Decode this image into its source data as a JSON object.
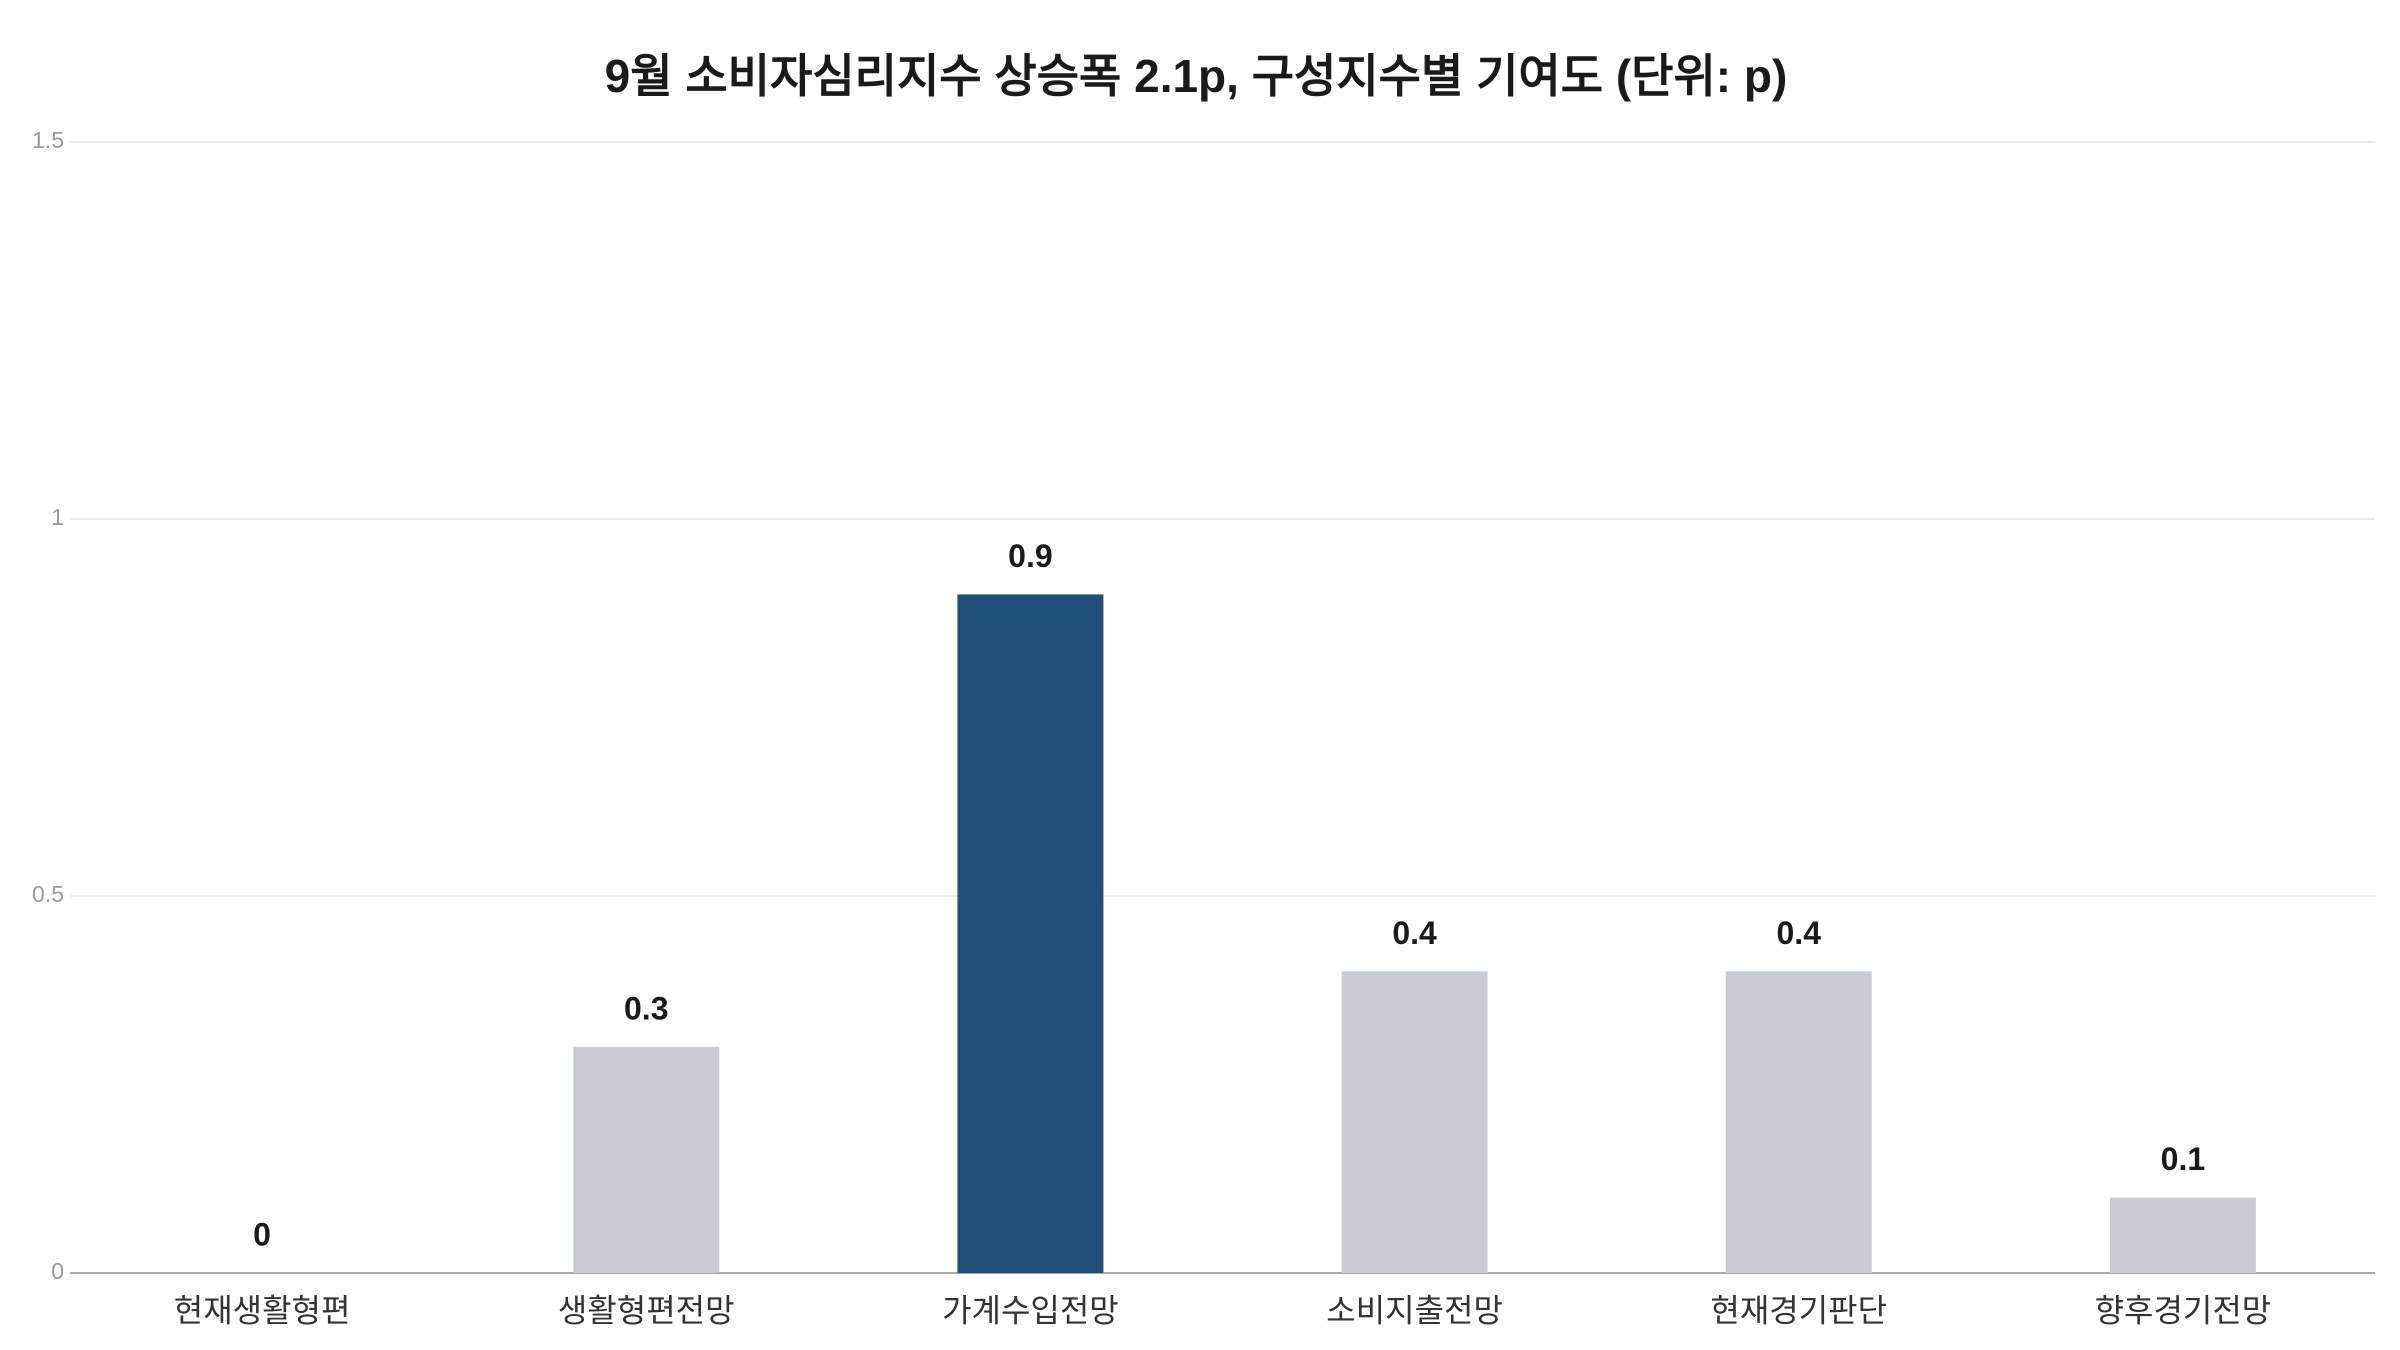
{
  "chart_data": {
    "type": "bar",
    "title": "9월 소비자심리지수 상승폭 2.1p, 구성지수별 기여도 (단위: p)",
    "categories": [
      "현재생활형편",
      "생활형편전망",
      "가계수입전망",
      "소비지출전망",
      "현재경기판단",
      "향후경기전망"
    ],
    "values": [
      0,
      0.3,
      0.9,
      0.4,
      0.4,
      0.1
    ],
    "colors": [
      "#c8ccd2",
      "#c8ccd2",
      "#214f7a",
      "#c8ccd2",
      "#c8ccd2",
      "#c8ccd2"
    ],
    "ylim": [
      0,
      1.5
    ],
    "yticks": [
      0,
      0.5,
      1,
      1.5
    ],
    "grid": true
  }
}
